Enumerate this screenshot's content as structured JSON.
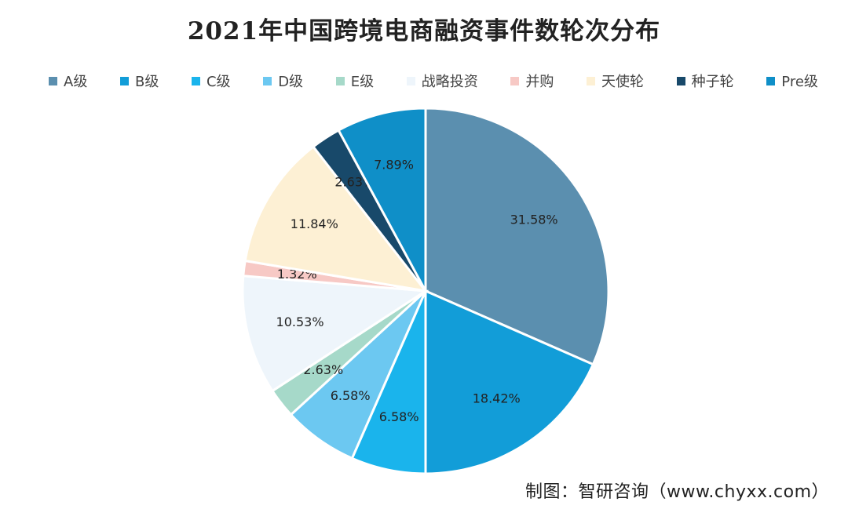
{
  "chart_data": {
    "type": "pie",
    "title": "2021年中国跨境电商融资事件数轮次分布",
    "legend_position": "top",
    "categories": [
      "A级",
      "B级",
      "C级",
      "D级",
      "E级",
      "战略投资",
      "并购",
      "天使轮",
      "种子轮",
      "Pre级"
    ],
    "values": [
      31.58,
      18.42,
      6.58,
      6.58,
      2.63,
      10.53,
      1.32,
      11.84,
      2.63,
      7.89
    ],
    "value_labels": [
      "31.58%",
      "18.42%",
      "6.58%",
      "6.58%",
      "2.63%",
      "10.53%",
      "1.32%",
      "11.84%",
      "2.63%",
      "7.89%"
    ],
    "colors": [
      "#5b8faf",
      "#129dd8",
      "#1ab4ec",
      "#6cc8f1",
      "#a6d9c9",
      "#eef5fb",
      "#f7c9c5",
      "#fdf0d4",
      "#18496a",
      "#0f8fc8"
    ],
    "start_angle_deg": 0,
    "direction": "clockwise"
  },
  "source": "制图：智研咨询（www.chyxx.com）"
}
